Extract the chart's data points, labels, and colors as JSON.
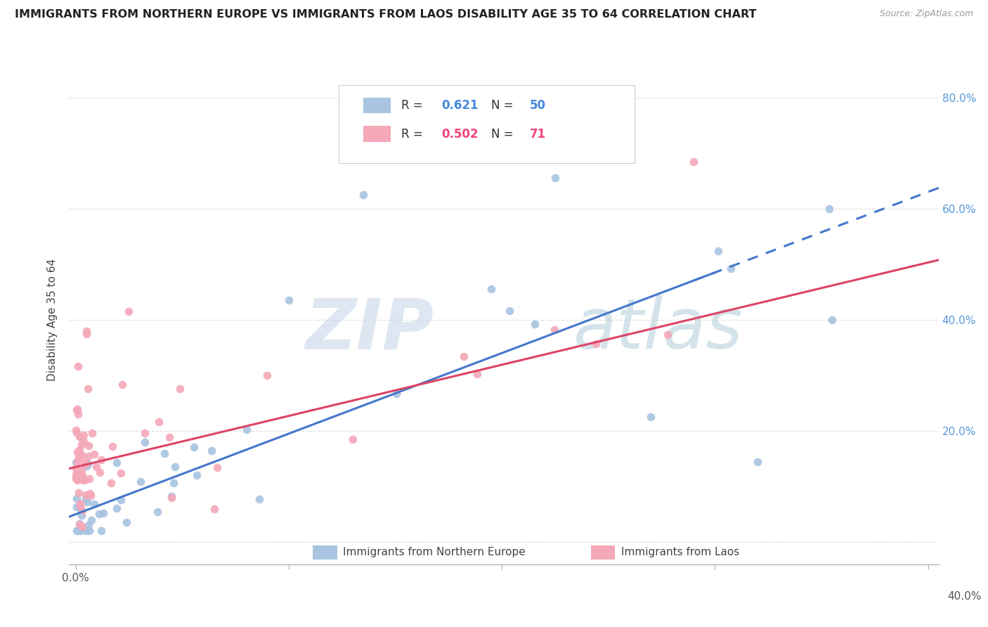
{
  "title": "IMMIGRANTS FROM NORTHERN EUROPE VS IMMIGRANTS FROM LAOS DISABILITY AGE 35 TO 64 CORRELATION CHART",
  "source": "Source: ZipAtlas.com",
  "ylabel": "Disability Age 35 to 64",
  "xlim": [
    -0.003,
    0.405
  ],
  "ylim": [
    -0.04,
    0.84
  ],
  "blue_color": "#a8c4e0",
  "pink_color": "#f4a8b8",
  "blue_line_color": "#4477cc",
  "pink_line_color": "#dd4466",
  "blue_text_color": "#4488dd",
  "pink_text_color": "#ee4477",
  "right_axis_color": "#5599dd",
  "grid_color": "#dddddd",
  "background_color": "#ffffff",
  "watermark_zip_color": "#c8d8e8",
  "watermark_atlas_color": "#b0ccd8",
  "blue_R": "0.621",
  "blue_N": "50",
  "pink_R": "0.502",
  "pink_N": "71",
  "legend_label_blue": "Immigrants from Northern Europe",
  "legend_label_pink": "Immigrants from Laos",
  "blue_intercept": 0.05,
  "blue_slope": 1.45,
  "pink_intercept": 0.135,
  "pink_slope": 0.92
}
